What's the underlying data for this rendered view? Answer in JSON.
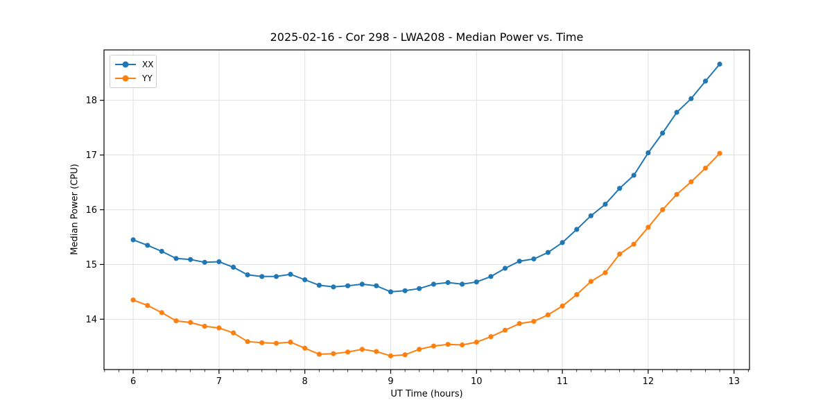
{
  "figure": {
    "background": "#ffffff",
    "frame_color": "#000000",
    "grid_color": "#e0e0e0"
  },
  "chart_data": {
    "type": "line",
    "title": "2025-02-16 - Cor 298 - LWA208 - Median Power vs. Time",
    "xlabel": "UT Time (hours)",
    "ylabel": "Median Power (CPU)",
    "xlim": [
      5.66,
      13.18
    ],
    "ylim": [
      13.08,
      18.92
    ],
    "x_ticks": [
      6,
      7,
      8,
      9,
      10,
      11,
      12,
      13
    ],
    "y_ticks": [
      14,
      15,
      16,
      17,
      18
    ],
    "x_minor_divisions_per_unit": 6,
    "grid": true,
    "legend_position": "upper-left",
    "marker": "circle",
    "x": [
      6.0,
      6.167,
      6.333,
      6.5,
      6.667,
      6.833,
      7.0,
      7.167,
      7.333,
      7.5,
      7.667,
      7.833,
      8.0,
      8.167,
      8.333,
      8.5,
      8.667,
      8.833,
      9.0,
      9.167,
      9.333,
      9.5,
      9.667,
      9.833,
      10.0,
      10.167,
      10.333,
      10.5,
      10.667,
      10.833,
      11.0,
      11.167,
      11.333,
      11.5,
      11.667,
      11.833,
      12.0,
      12.167,
      12.333,
      12.5,
      12.667,
      12.833
    ],
    "series": [
      {
        "name": "XX",
        "color": "#1f77b4",
        "values": [
          15.45,
          15.35,
          15.24,
          15.11,
          15.09,
          15.04,
          15.05,
          14.95,
          14.81,
          14.78,
          14.78,
          14.82,
          14.72,
          14.62,
          14.59,
          14.61,
          14.64,
          14.61,
          14.5,
          14.52,
          14.56,
          14.64,
          14.67,
          14.64,
          14.68,
          14.78,
          14.93,
          15.06,
          15.1,
          15.22,
          15.4,
          15.64,
          15.89,
          16.1,
          16.39,
          16.63,
          17.04,
          17.4,
          17.78,
          18.03,
          18.35,
          18.66
        ]
      },
      {
        "name": "YY",
        "color": "#ff7f0e",
        "values": [
          14.35,
          14.25,
          14.12,
          13.97,
          13.94,
          13.87,
          13.84,
          13.75,
          13.59,
          13.57,
          13.56,
          13.58,
          13.47,
          13.36,
          13.37,
          13.4,
          13.45,
          13.41,
          13.33,
          13.35,
          13.45,
          13.51,
          13.54,
          13.53,
          13.58,
          13.68,
          13.8,
          13.92,
          13.96,
          14.08,
          14.24,
          14.45,
          14.69,
          14.85,
          15.19,
          15.37,
          15.68,
          16.0,
          16.28,
          16.51,
          16.76,
          17.03
        ]
      }
    ]
  }
}
